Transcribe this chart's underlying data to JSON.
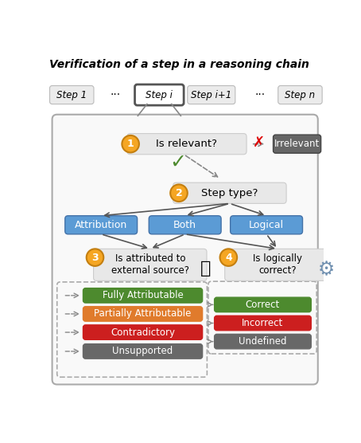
{
  "title": "Verification of a step in a reasoning chain",
  "fig_w": 4.54,
  "fig_h": 5.56,
  "dpi": 100,
  "bg": "#ffffff",
  "step_box_color": "#ebebeb",
  "highlight_box_color": "#ffffff",
  "highlight_border": "#555555",
  "node_bg": "#e8e8e8",
  "blue": "#5b9bd5",
  "green": "#4d8a2e",
  "orange": "#e07b2c",
  "red": "#cc1f1f",
  "gray_dark": "#5a5a5a",
  "gray_med": "#888888",
  "circle_fill": "#f5a623",
  "circle_edge": "#c47f10",
  "irrelevant_bg": "#666666",
  "attribution_labels": [
    "Attribution",
    "Both",
    "Logical"
  ],
  "left_outcomes": [
    "Fully Attributable",
    "Partially Attributable",
    "Contradictory",
    "Unsupported"
  ],
  "left_colors": [
    "#4d8a2e",
    "#e07b2c",
    "#cc1f1f",
    "#686868"
  ],
  "right_outcomes": [
    "Correct",
    "Incorrect",
    "Undefined"
  ],
  "right_colors": [
    "#4d8a2e",
    "#cc1f1f",
    "#686868"
  ]
}
